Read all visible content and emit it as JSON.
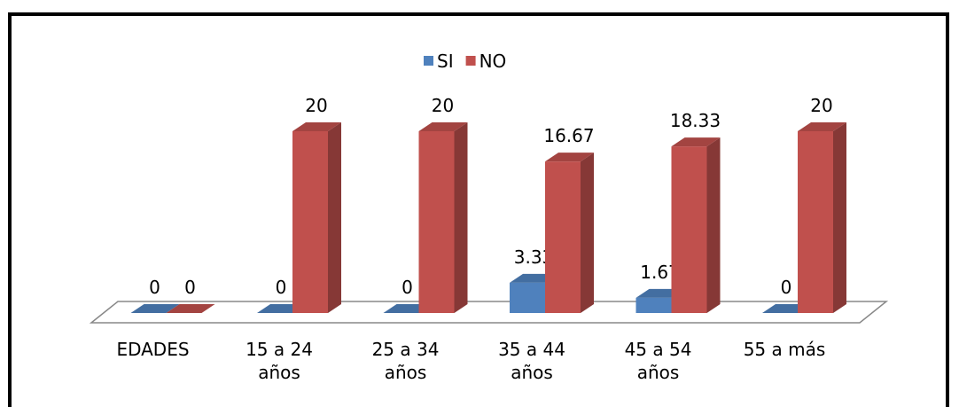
{
  "chart_data": {
    "type": "bar3d",
    "categories": [
      "EDADES",
      "15 a 24 años",
      "25 a 34 años",
      "35 a 44 años",
      "45 a 54 años",
      "55 a más"
    ],
    "series": [
      {
        "name": "SI",
        "color": "#4f81bd",
        "values": [
          0,
          0,
          0,
          3.33,
          1.67,
          0
        ]
      },
      {
        "name": "NO",
        "color": "#c0504d",
        "values": [
          0,
          20,
          20,
          16.67,
          18.33,
          20
        ]
      }
    ],
    "legend": "top"
  }
}
